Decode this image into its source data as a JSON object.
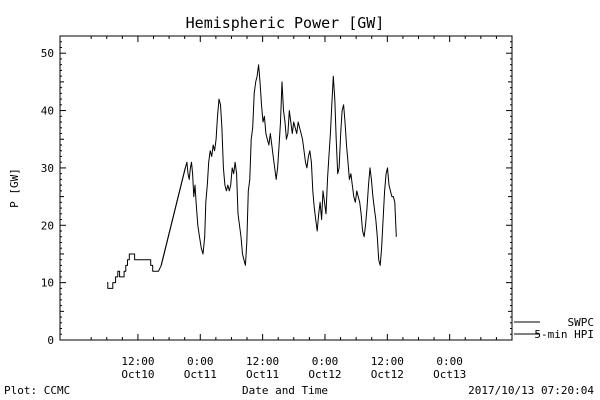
{
  "chart_data": {
    "type": "line",
    "title": "Hemispheric Power [GW]",
    "ylabel": "P [GW]",
    "xlabel": "Date and Time",
    "ylim": [
      0,
      53
    ],
    "yticks": [
      0,
      10,
      20,
      30,
      40,
      50
    ],
    "xlim_hours": [
      -3,
      84
    ],
    "xticks": [
      {
        "hour": 12,
        "time": "12:00",
        "date": "Oct10"
      },
      {
        "hour": 24,
        "time": "0:00",
        "date": "Oct11"
      },
      {
        "hour": 36,
        "time": "12:00",
        "date": "Oct11"
      },
      {
        "hour": 48,
        "time": "0:00",
        "date": "Oct12"
      },
      {
        "hour": 60,
        "time": "12:00",
        "date": "Oct12"
      },
      {
        "hour": 72,
        "time": "0:00",
        "date": "Oct13"
      }
    ],
    "grid": false,
    "legend": {
      "position": "bottom-right",
      "entries": [
        "SWPC",
        "5-min HPI"
      ]
    },
    "series": [
      {
        "name": "5-min HPI",
        "color": "#000000",
        "points": [
          [
            6.05,
            10
          ],
          [
            6.21,
            10
          ],
          [
            6.21,
            9
          ],
          [
            6.64,
            9
          ],
          [
            7.16,
            9
          ],
          [
            7.16,
            10
          ],
          [
            7.71,
            10
          ],
          [
            7.71,
            11
          ],
          [
            8.12,
            11
          ],
          [
            8.12,
            12
          ],
          [
            8.47,
            12
          ],
          [
            8.47,
            11
          ],
          [
            9.33,
            11
          ],
          [
            9.33,
            12
          ],
          [
            9.66,
            12
          ],
          [
            9.66,
            13
          ],
          [
            9.99,
            13
          ],
          [
            9.99,
            14
          ],
          [
            10.33,
            14
          ],
          [
            10.33,
            15
          ],
          [
            11.35,
            15
          ],
          [
            11.35,
            14
          ],
          [
            11.54,
            14
          ],
          [
            12.61,
            14
          ],
          [
            13.3,
            14
          ],
          [
            14.46,
            14
          ],
          [
            14.46,
            13
          ],
          [
            14.85,
            13
          ],
          [
            14.85,
            12
          ],
          [
            15.43,
            12
          ],
          [
            15.95,
            12
          ],
          [
            16.48,
            13
          ],
          [
            21.12,
            30
          ],
          [
            21.42,
            31
          ],
          [
            21.64,
            29
          ],
          [
            21.86,
            28
          ],
          [
            22.09,
            30
          ],
          [
            22.31,
            31
          ],
          [
            22.53,
            29
          ],
          [
            22.75,
            25
          ],
          [
            22.98,
            27
          ],
          [
            23.2,
            24
          ],
          [
            23.53,
            20
          ],
          [
            23.86,
            18
          ],
          [
            24.2,
            16
          ],
          [
            24.53,
            15
          ],
          [
            24.86,
            18
          ],
          [
            25.07,
            24
          ],
          [
            25.35,
            27
          ],
          [
            25.63,
            31
          ],
          [
            25.91,
            33
          ],
          [
            26.2,
            32
          ],
          [
            26.48,
            34
          ],
          [
            26.76,
            33
          ],
          [
            27.04,
            35
          ],
          [
            27.32,
            39
          ],
          [
            27.61,
            42
          ],
          [
            27.89,
            41
          ],
          [
            28.17,
            37
          ],
          [
            28.45,
            30
          ],
          [
            28.73,
            27
          ],
          [
            29.02,
            26
          ],
          [
            29.3,
            27
          ],
          [
            29.58,
            26
          ],
          [
            29.86,
            27
          ],
          [
            30.14,
            30
          ],
          [
            30.43,
            29
          ],
          [
            30.71,
            31
          ],
          [
            30.99,
            29
          ],
          [
            31.27,
            22
          ],
          [
            31.55,
            20
          ],
          [
            31.84,
            18
          ],
          [
            32.12,
            15
          ],
          [
            32.4,
            14
          ],
          [
            32.68,
            13
          ],
          [
            32.96,
            17
          ],
          [
            33.25,
            26
          ],
          [
            33.53,
            28
          ],
          [
            33.81,
            35
          ],
          [
            34.09,
            37
          ],
          [
            34.37,
            43
          ],
          [
            34.66,
            45
          ],
          [
            34.94,
            46
          ],
          [
            35.22,
            48
          ],
          [
            35.5,
            45
          ],
          [
            35.79,
            41
          ],
          [
            36.07,
            38
          ],
          [
            36.35,
            39
          ],
          [
            36.63,
            36
          ],
          [
            36.91,
            35
          ],
          [
            37.2,
            34
          ],
          [
            37.48,
            36
          ],
          [
            37.76,
            34
          ],
          [
            38.04,
            32
          ],
          [
            38.32,
            30
          ],
          [
            38.61,
            28
          ],
          [
            38.89,
            30
          ],
          [
            39.17,
            34
          ],
          [
            39.45,
            38
          ],
          [
            39.73,
            45
          ],
          [
            40.02,
            40
          ],
          [
            40.3,
            38
          ],
          [
            40.58,
            35
          ],
          [
            40.86,
            36
          ],
          [
            41.14,
            40
          ],
          [
            41.43,
            38
          ],
          [
            41.71,
            36
          ],
          [
            41.99,
            38
          ],
          [
            42.27,
            37
          ],
          [
            42.56,
            36
          ],
          [
            42.84,
            38
          ],
          [
            43.12,
            37
          ],
          [
            43.4,
            36
          ],
          [
            43.68,
            35
          ],
          [
            43.97,
            33
          ],
          [
            44.25,
            31
          ],
          [
            44.53,
            30
          ],
          [
            44.81,
            32
          ],
          [
            45.09,
            33
          ],
          [
            45.38,
            31
          ],
          [
            45.66,
            26
          ],
          [
            45.94,
            23
          ],
          [
            46.22,
            21
          ],
          [
            46.5,
            19
          ],
          [
            46.79,
            22
          ],
          [
            47.07,
            24
          ],
          [
            47.35,
            21
          ],
          [
            47.63,
            26
          ],
          [
            47.91,
            24
          ],
          [
            48.2,
            22
          ],
          [
            48.48,
            28
          ],
          [
            48.76,
            32
          ],
          [
            49.04,
            36
          ],
          [
            49.32,
            41
          ],
          [
            49.61,
            46
          ],
          [
            49.89,
            42
          ],
          [
            50.17,
            35
          ],
          [
            50.45,
            29
          ],
          [
            50.73,
            30
          ],
          [
            51.02,
            36
          ],
          [
            51.3,
            40
          ],
          [
            51.58,
            41
          ],
          [
            51.86,
            38
          ],
          [
            52.14,
            34
          ],
          [
            52.43,
            31
          ],
          [
            52.71,
            28
          ],
          [
            52.99,
            29
          ],
          [
            53.27,
            27
          ],
          [
            53.55,
            25
          ],
          [
            53.84,
            24
          ],
          [
            54.12,
            26
          ],
          [
            54.4,
            25
          ],
          [
            54.68,
            24
          ],
          [
            54.96,
            22
          ],
          [
            55.25,
            19
          ],
          [
            55.53,
            18
          ],
          [
            55.81,
            20
          ],
          [
            56.09,
            23
          ],
          [
            56.37,
            27
          ],
          [
            56.66,
            30
          ],
          [
            56.94,
            28
          ],
          [
            57.22,
            25
          ],
          [
            57.5,
            23
          ],
          [
            57.78,
            21
          ],
          [
            58.07,
            18
          ],
          [
            58.35,
            14
          ],
          [
            58.63,
            13
          ],
          [
            58.91,
            16
          ],
          [
            59.19,
            21
          ],
          [
            59.48,
            26
          ],
          [
            59.76,
            29
          ],
          [
            60.04,
            30
          ],
          [
            60.32,
            27
          ],
          [
            60.6,
            26
          ],
          [
            60.89,
            25
          ],
          [
            61.17,
            25
          ],
          [
            61.45,
            24
          ],
          [
            61.73,
            18
          ]
        ]
      },
      {
        "name": "SWPC",
        "color": "#000000",
        "points": [
          [
            16.48,
            13
          ],
          [
            21.12,
            30
          ]
        ]
      }
    ]
  },
  "footer": {
    "left": "Plot: CCMC",
    "right": "2017/10/13 07:20:04"
  }
}
